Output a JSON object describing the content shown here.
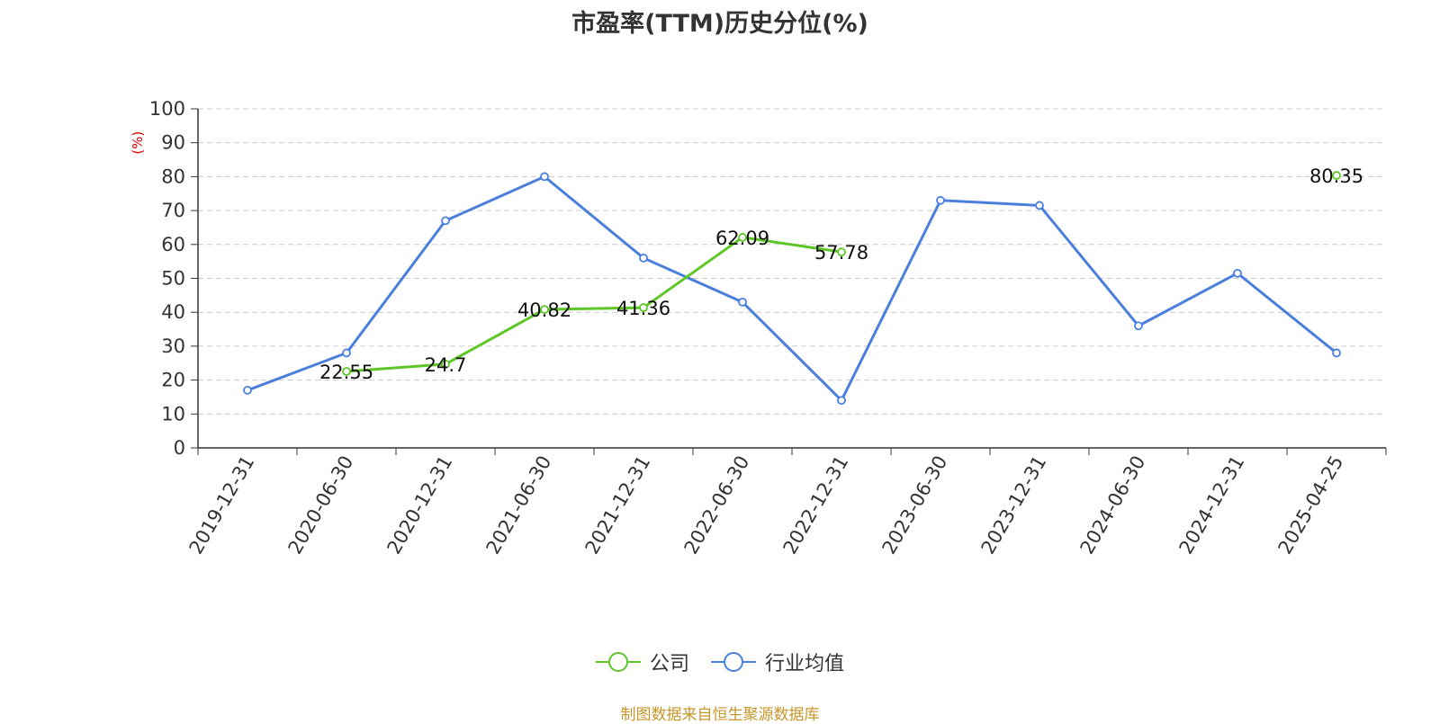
{
  "title": "市盈率(TTM)历史分位(%)",
  "source": "制图数据来自恒生聚源数据库",
  "colors": {
    "company": "#5ec626",
    "industry": "#4a7fdc"
  },
  "legend": {
    "company": "公司",
    "industry": "行业均值"
  },
  "chart_data": {
    "type": "line",
    "title": "市盈率(TTM)历史分位(%)",
    "ylabel": "(%)",
    "ylim": [
      0,
      100
    ],
    "yticks": [
      0,
      10,
      20,
      30,
      40,
      50,
      60,
      70,
      80,
      90,
      100
    ],
    "grid": true,
    "legend_position": "bottom",
    "categories": [
      "2019-12-31",
      "2020-06-30",
      "2020-12-31",
      "2021-06-30",
      "2021-12-31",
      "2022-06-30",
      "2022-12-31",
      "2023-06-30",
      "2023-12-31",
      "2024-06-30",
      "2024-12-31",
      "2025-04-25"
    ],
    "series": [
      {
        "name": "公司",
        "values": [
          null,
          22.55,
          24.7,
          40.82,
          41.36,
          62.09,
          57.78,
          null,
          null,
          null,
          null,
          80.35
        ],
        "data_labels": true
      },
      {
        "name": "行业均值",
        "values": [
          17,
          28,
          67,
          80,
          56,
          43,
          14,
          73,
          71.5,
          36,
          51.5,
          28
        ],
        "data_labels": false
      }
    ]
  }
}
